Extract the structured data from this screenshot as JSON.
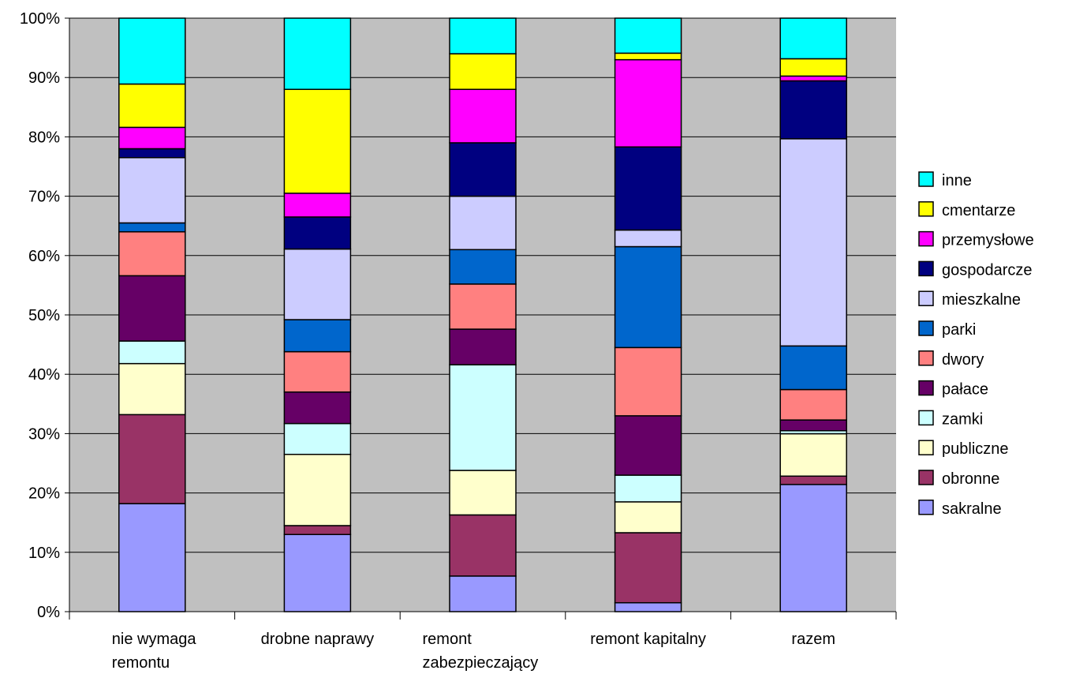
{
  "chart_data": {
    "type": "bar",
    "stacked": true,
    "percent": true,
    "categories": [
      [
        "nie wymaga",
        "remontu"
      ],
      [
        "drobne naprawy"
      ],
      [
        "remont",
        "zabezpieczający"
      ],
      [
        "remont kapitalny"
      ],
      [
        "razem"
      ]
    ],
    "yticks": [
      "0%",
      "10%",
      "20%",
      "30%",
      "40%",
      "50%",
      "60%",
      "70%",
      "80%",
      "90%",
      "100%"
    ],
    "ylim": [
      0,
      100
    ],
    "grid": true,
    "legend_position": "right",
    "plot_background": "#c0c0c0",
    "series": [
      {
        "name": "sakralne",
        "color": "#9999ff",
        "values": [
          18.2,
          13.0,
          6.0,
          1.5,
          21.3
        ]
      },
      {
        "name": "obronne",
        "color": "#993366",
        "values": [
          15.0,
          1.5,
          10.3,
          11.8,
          1.4
        ]
      },
      {
        "name": "publiczne",
        "color": "#ffffcc",
        "values": [
          8.6,
          12.0,
          7.5,
          5.2,
          7.1
        ]
      },
      {
        "name": "zamki",
        "color": "#ccffff",
        "values": [
          3.8,
          5.2,
          17.8,
          4.5,
          0.5
        ]
      },
      {
        "name": "pałace",
        "color": "#660066",
        "values": [
          11.0,
          5.3,
          6.0,
          10.0,
          1.8
        ]
      },
      {
        "name": "dwory",
        "color": "#ff8080",
        "values": [
          7.4,
          6.8,
          7.6,
          11.5,
          5.1
        ]
      },
      {
        "name": "parki",
        "color": "#0066cc",
        "values": [
          1.5,
          5.4,
          5.8,
          17.0,
          7.3
        ]
      },
      {
        "name": "mieszkalne",
        "color": "#ccccff",
        "values": [
          11.0,
          11.9,
          9.0,
          2.8,
          34.7
        ]
      },
      {
        "name": "gospodarcze",
        "color": "#000080",
        "values": [
          1.5,
          5.4,
          9.0,
          14.0,
          9.7
        ]
      },
      {
        "name": "przemysłowe",
        "color": "#ff00ff",
        "values": [
          3.6,
          4.0,
          9.0,
          14.7,
          0.8
        ]
      },
      {
        "name": "cmentarze",
        "color": "#ffff00",
        "values": [
          7.3,
          17.5,
          6.0,
          1.1,
          2.9
        ]
      },
      {
        "name": "inne",
        "color": "#00ffff",
        "values": [
          11.1,
          12.0,
          6.0,
          5.9,
          6.8
        ]
      }
    ]
  }
}
